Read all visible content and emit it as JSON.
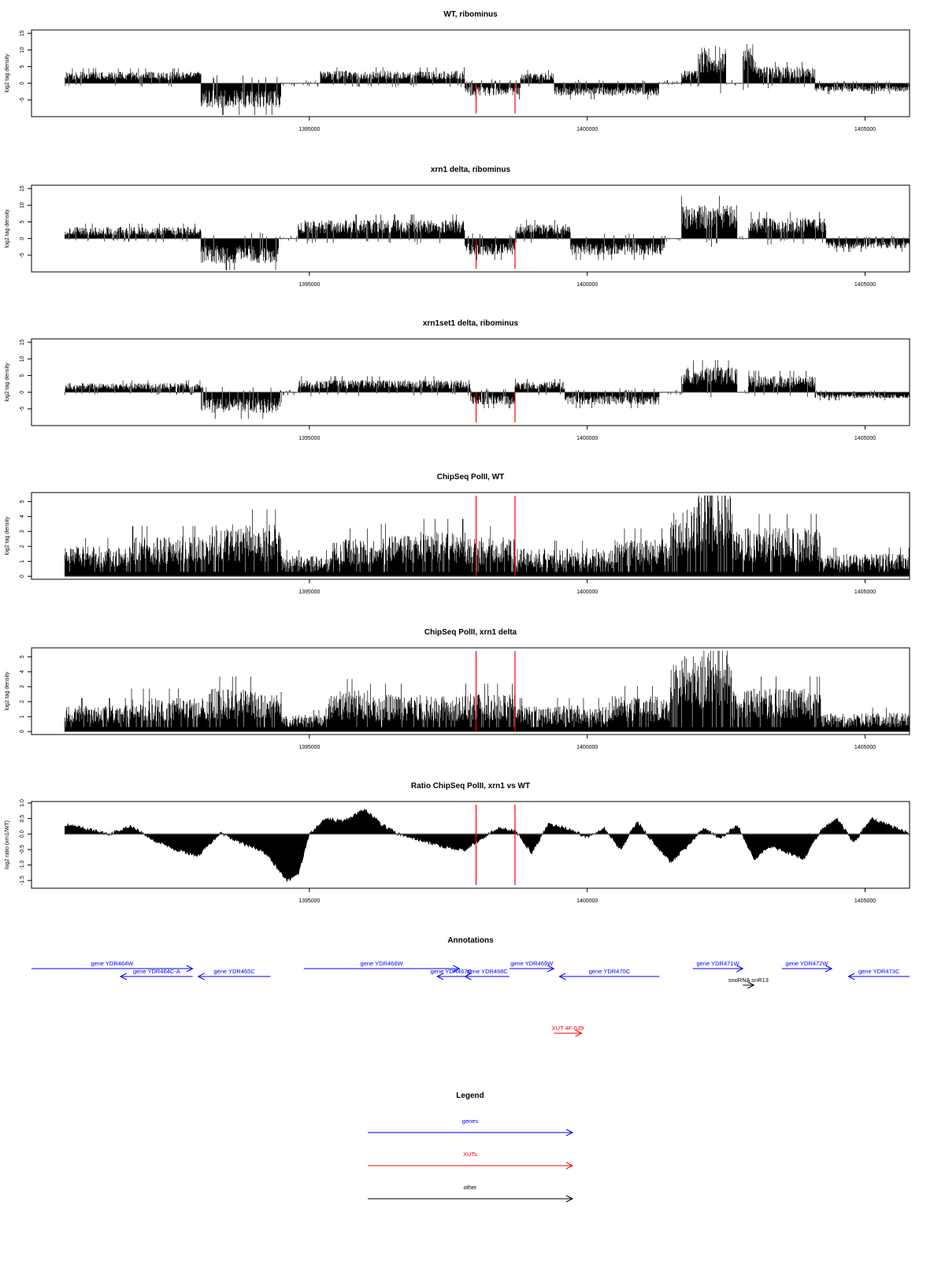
{
  "colors": {
    "signal": "#000000",
    "marker": "#ff0000",
    "gene": "#0000ff",
    "xut": "#ff0000",
    "other": "#000000"
  },
  "markers_x": [
    1398000,
    1398700
  ],
  "chart_data": [
    {
      "type": "bar",
      "title": "WT, ribominus",
      "ylabel": "log2 tag density",
      "xlim": [
        1390000,
        1405800
      ],
      "ylim": [
        -10,
        16
      ],
      "yticks": [
        -5,
        0,
        5,
        10,
        15
      ],
      "xticks": [
        1395000,
        1400000,
        1405000
      ],
      "xticklabels": [
        "1395000",
        "1400000",
        "1405000"
      ],
      "grid": false,
      "baseline": 0,
      "segments": [
        {
          "x0": 1390600,
          "x1": 1393050,
          "sign": 1,
          "level": 2.8
        },
        {
          "x0": 1393050,
          "x1": 1394500,
          "sign": -1,
          "level": 6
        },
        {
          "x0": 1394500,
          "x1": 1395200,
          "sign": 0,
          "level": 0.5
        },
        {
          "x0": 1395200,
          "x1": 1397800,
          "sign": 1,
          "level": 3
        },
        {
          "x0": 1397800,
          "x1": 1398800,
          "sign": -1,
          "level": 3
        },
        {
          "x0": 1398800,
          "x1": 1399400,
          "sign": 1,
          "level": 2.5
        },
        {
          "x0": 1399400,
          "x1": 1401300,
          "sign": -1,
          "level": 3
        },
        {
          "x0": 1401300,
          "x1": 1401700,
          "sign": 0,
          "level": 0.5
        },
        {
          "x0": 1401700,
          "x1": 1402000,
          "sign": 1,
          "level": 3
        },
        {
          "x0": 1402000,
          "x1": 1402500,
          "sign": 1,
          "level": 9
        },
        {
          "x0": 1402500,
          "x1": 1402800,
          "sign": 0,
          "level": 0.5
        },
        {
          "x0": 1402800,
          "x1": 1403000,
          "sign": 1,
          "level": 10
        },
        {
          "x0": 1403000,
          "x1": 1404100,
          "sign": 1,
          "level": 4
        },
        {
          "x0": 1404100,
          "x1": 1405800,
          "sign": -1,
          "level": 2
        }
      ]
    },
    {
      "type": "bar",
      "title": "xrn1 delta, ribominus",
      "ylabel": "log2 tag density",
      "xlim": [
        1390000,
        1405800
      ],
      "ylim": [
        -10,
        16
      ],
      "yticks": [
        -5,
        0,
        5,
        10,
        15
      ],
      "xticks": [
        1395000,
        1400000,
        1405000
      ],
      "xticklabels": [
        "1395000",
        "1400000",
        "1405000"
      ],
      "grid": false,
      "baseline": 0,
      "segments": [
        {
          "x0": 1390600,
          "x1": 1393050,
          "sign": 1,
          "level": 2.8
        },
        {
          "x0": 1393050,
          "x1": 1394450,
          "sign": -1,
          "level": 6
        },
        {
          "x0": 1394450,
          "x1": 1394800,
          "sign": 0,
          "level": 0.5
        },
        {
          "x0": 1394800,
          "x1": 1397800,
          "sign": 1,
          "level": 4.5
        },
        {
          "x0": 1397800,
          "x1": 1398700,
          "sign": -1,
          "level": 4
        },
        {
          "x0": 1398700,
          "x1": 1399700,
          "sign": 1,
          "level": 3.5
        },
        {
          "x0": 1399700,
          "x1": 1401400,
          "sign": -1,
          "level": 4
        },
        {
          "x0": 1401400,
          "x1": 1401700,
          "sign": 0,
          "level": 0.5
        },
        {
          "x0": 1401700,
          "x1": 1402700,
          "sign": 1,
          "level": 8
        },
        {
          "x0": 1402700,
          "x1": 1402900,
          "sign": 0,
          "level": 0.5
        },
        {
          "x0": 1402900,
          "x1": 1404300,
          "sign": 1,
          "level": 5
        },
        {
          "x0": 1404300,
          "x1": 1405800,
          "sign": -1,
          "level": 2.5
        }
      ]
    },
    {
      "type": "bar",
      "title": "xrn1set1 delta, ribominus",
      "ylabel": "log2 tag density",
      "xlim": [
        1390000,
        1405800
      ],
      "ylim": [
        -10,
        16
      ],
      "yticks": [
        -5,
        0,
        5,
        10,
        15
      ],
      "xticks": [
        1395000,
        1400000,
        1405000
      ],
      "xticklabels": [
        "1395000",
        "1400000",
        "1405000"
      ],
      "grid": false,
      "baseline": 0,
      "segments": [
        {
          "x0": 1390600,
          "x1": 1393050,
          "sign": 1,
          "level": 2.2
        },
        {
          "x0": 1393050,
          "x1": 1394500,
          "sign": -1,
          "level": 5
        },
        {
          "x0": 1394500,
          "x1": 1394800,
          "sign": 0,
          "level": 0.5
        },
        {
          "x0": 1394800,
          "x1": 1397900,
          "sign": 1,
          "level": 3
        },
        {
          "x0": 1397900,
          "x1": 1398700,
          "sign": -1,
          "level": 3
        },
        {
          "x0": 1398700,
          "x1": 1399600,
          "sign": 1,
          "level": 2.5
        },
        {
          "x0": 1399600,
          "x1": 1401300,
          "sign": -1,
          "level": 3
        },
        {
          "x0": 1401300,
          "x1": 1401700,
          "sign": 0,
          "level": 0.5
        },
        {
          "x0": 1401700,
          "x1": 1402700,
          "sign": 1,
          "level": 6
        },
        {
          "x0": 1402700,
          "x1": 1402900,
          "sign": 0,
          "level": 0.5
        },
        {
          "x0": 1402900,
          "x1": 1404100,
          "sign": 1,
          "level": 4
        },
        {
          "x0": 1404100,
          "x1": 1405800,
          "sign": -1,
          "level": 1.5
        }
      ]
    },
    {
      "type": "bar",
      "title": "ChipSeq PolII, WT",
      "ylabel": "log2 tag density",
      "xlim": [
        1390000,
        1405800
      ],
      "ylim": [
        -0.2,
        5.6
      ],
      "yticks": [
        0,
        1,
        2,
        3,
        4,
        5
      ],
      "xticks": [
        1395000,
        1400000,
        1405000
      ],
      "xticklabels": [
        "1395000",
        "1400000",
        "1405000"
      ],
      "grid": false,
      "baseline": 0,
      "segments": [
        {
          "x0": 1390600,
          "x1": 1391800,
          "sign": 1,
          "level": 1.6
        },
        {
          "x0": 1391800,
          "x1": 1393200,
          "sign": 1,
          "level": 2.1
        },
        {
          "x0": 1393200,
          "x1": 1394500,
          "sign": 1,
          "level": 2.8
        },
        {
          "x0": 1394500,
          "x1": 1395400,
          "sign": 1,
          "level": 1.1
        },
        {
          "x0": 1395400,
          "x1": 1396200,
          "sign": 1,
          "level": 2
        },
        {
          "x0": 1396200,
          "x1": 1397000,
          "sign": 1,
          "level": 2.2
        },
        {
          "x0": 1397000,
          "x1": 1397800,
          "sign": 1,
          "level": 2.4
        },
        {
          "x0": 1397800,
          "x1": 1398700,
          "sign": 1,
          "level": 2.1
        },
        {
          "x0": 1398700,
          "x1": 1400500,
          "sign": 1,
          "level": 1.5
        },
        {
          "x0": 1400500,
          "x1": 1401500,
          "sign": 1,
          "level": 2
        },
        {
          "x0": 1401500,
          "x1": 1402000,
          "sign": 1,
          "level": 3.8
        },
        {
          "x0": 1402000,
          "x1": 1402600,
          "sign": 1,
          "level": 4.8
        },
        {
          "x0": 1402600,
          "x1": 1404200,
          "sign": 1,
          "level": 2.6
        },
        {
          "x0": 1404200,
          "x1": 1405800,
          "sign": 1,
          "level": 1.2
        }
      ]
    },
    {
      "type": "bar",
      "title": "ChipSeq PolII, xrn1 delta",
      "ylabel": "log2 tag density",
      "xlim": [
        1390000,
        1405800
      ],
      "ylim": [
        -0.2,
        5.6
      ],
      "yticks": [
        0,
        1,
        2,
        3,
        4,
        5
      ],
      "xticks": [
        1395000,
        1400000,
        1405000
      ],
      "xticklabels": [
        "1395000",
        "1400000",
        "1405000"
      ],
      "grid": false,
      "baseline": 0,
      "segments": [
        {
          "x0": 1390600,
          "x1": 1391800,
          "sign": 1,
          "level": 1.4
        },
        {
          "x0": 1391800,
          "x1": 1393200,
          "sign": 1,
          "level": 1.8
        },
        {
          "x0": 1393200,
          "x1": 1394500,
          "sign": 1,
          "level": 2.3
        },
        {
          "x0": 1394500,
          "x1": 1395300,
          "sign": 1,
          "level": 0.9
        },
        {
          "x0": 1395300,
          "x1": 1396100,
          "sign": 1,
          "level": 2.2
        },
        {
          "x0": 1396100,
          "x1": 1397000,
          "sign": 1,
          "level": 2
        },
        {
          "x0": 1397000,
          "x1": 1397800,
          "sign": 1,
          "level": 1.9
        },
        {
          "x0": 1397800,
          "x1": 1398700,
          "sign": 1,
          "level": 2
        },
        {
          "x0": 1398700,
          "x1": 1400400,
          "sign": 1,
          "level": 1.4
        },
        {
          "x0": 1400400,
          "x1": 1401500,
          "sign": 1,
          "level": 1.9
        },
        {
          "x0": 1401500,
          "x1": 1402100,
          "sign": 1,
          "level": 4.2
        },
        {
          "x0": 1402100,
          "x1": 1402600,
          "sign": 1,
          "level": 4.8
        },
        {
          "x0": 1402600,
          "x1": 1404200,
          "sign": 1,
          "level": 2.3
        },
        {
          "x0": 1404200,
          "x1": 1405800,
          "sign": 1,
          "level": 1
        }
      ]
    },
    {
      "type": "area",
      "title": "Ratio ChipSeq PolII, xrn1 vs WT",
      "ylabel": "log2 ratio (xrn1/WT)",
      "xlim": [
        1390000,
        1405800
      ],
      "ylim": [
        -1.75,
        1.05
      ],
      "yticks": [
        -1.5,
        -1.0,
        -0.5,
        0.0,
        0.5,
        1.0
      ],
      "yticklabels": [
        "-1.5",
        "-1.0",
        "-0.5",
        "0.0",
        "0.5",
        "1.0"
      ],
      "xticks": [
        1395000,
        1400000,
        1405000
      ],
      "xticklabels": [
        "1395000",
        "1400000",
        "1405000"
      ],
      "grid": false,
      "baseline": 0,
      "x": [
        1390600,
        1391000,
        1391400,
        1391800,
        1392200,
        1392600,
        1393000,
        1393400,
        1393800,
        1394200,
        1394600,
        1394800,
        1395000,
        1395300,
        1395600,
        1396000,
        1396300,
        1396600,
        1397000,
        1397400,
        1397800,
        1398100,
        1398400,
        1398700,
        1399000,
        1399300,
        1399600,
        1400000,
        1400300,
        1400600,
        1400900,
        1401200,
        1401500,
        1401800,
        1402100,
        1402400,
        1402700,
        1403000,
        1403300,
        1403600,
        1403900,
        1404200,
        1404500,
        1404800,
        1405100,
        1405400,
        1405800
      ],
      "y": [
        0.3,
        0.15,
        0.0,
        0.25,
        -0.2,
        -0.5,
        -0.7,
        0.05,
        -0.3,
        -0.6,
        -1.5,
        -1.3,
        0.0,
        0.5,
        0.4,
        0.8,
        0.3,
        0.0,
        -0.2,
        -0.4,
        -0.5,
        -0.15,
        0.2,
        0.1,
        -0.6,
        0.3,
        0.2,
        -0.1,
        0.2,
        -0.5,
        0.4,
        -0.3,
        -0.9,
        -0.4,
        0.2,
        -0.15,
        0.3,
        -0.8,
        -0.4,
        -0.6,
        -0.8,
        0.1,
        0.5,
        -0.3,
        0.5,
        0.3,
        0.0
      ]
    }
  ],
  "annotations": {
    "title": "Annotations",
    "xlim": [
      1390000,
      1405800
    ],
    "items": [
      {
        "label": "gene YDR464W",
        "type": "gene",
        "x0": 1390000,
        "x1": 1392900,
        "row": 0
      },
      {
        "label": "gene YDR464C-A",
        "type": "gene",
        "x0": 1391600,
        "x1": 1392900,
        "row": 1
      },
      {
        "label": "gene YDR465C",
        "type": "gene",
        "x0": 1393000,
        "x1": 1394300,
        "row": 1
      },
      {
        "label": "gene YDR466W",
        "type": "gene",
        "x0": 1394900,
        "x1": 1397700,
        "row": 0
      },
      {
        "label": "gene YDR467C",
        "type": "gene",
        "x0": 1397300,
        "x1": 1397800,
        "row": 1
      },
      {
        "label": "gene YDR468C",
        "type": "gene",
        "x0": 1397800,
        "x1": 1398600,
        "row": 1
      },
      {
        "label": "gene YDR469W",
        "type": "gene",
        "x0": 1398600,
        "x1": 1399400,
        "row": 0
      },
      {
        "label": "gene YDR470C",
        "type": "gene",
        "x0": 1399500,
        "x1": 1401300,
        "row": 1
      },
      {
        "label": "gene YDR471W",
        "type": "gene",
        "x0": 1401900,
        "x1": 1402800,
        "row": 0
      },
      {
        "label": "gene YDR472W",
        "type": "gene",
        "x0": 1403500,
        "x1": 1404400,
        "row": 0
      },
      {
        "label": "gene YDR473C",
        "type": "gene",
        "x0": 1404700,
        "x1": 1405800,
        "row": 1
      },
      {
        "label": "snoRNA snR13",
        "type": "other",
        "x0": 1402800,
        "x1": 1403000,
        "row": 2
      },
      {
        "label": "XUT 4F-639",
        "type": "xut",
        "x0": 1399400,
        "x1": 1399900,
        "row": 3
      }
    ]
  },
  "legend": {
    "title": "Legend",
    "entries": [
      {
        "label": "genes",
        "type": "gene"
      },
      {
        "label": "XUTs",
        "type": "xut"
      },
      {
        "label": "other",
        "type": "other"
      }
    ]
  }
}
